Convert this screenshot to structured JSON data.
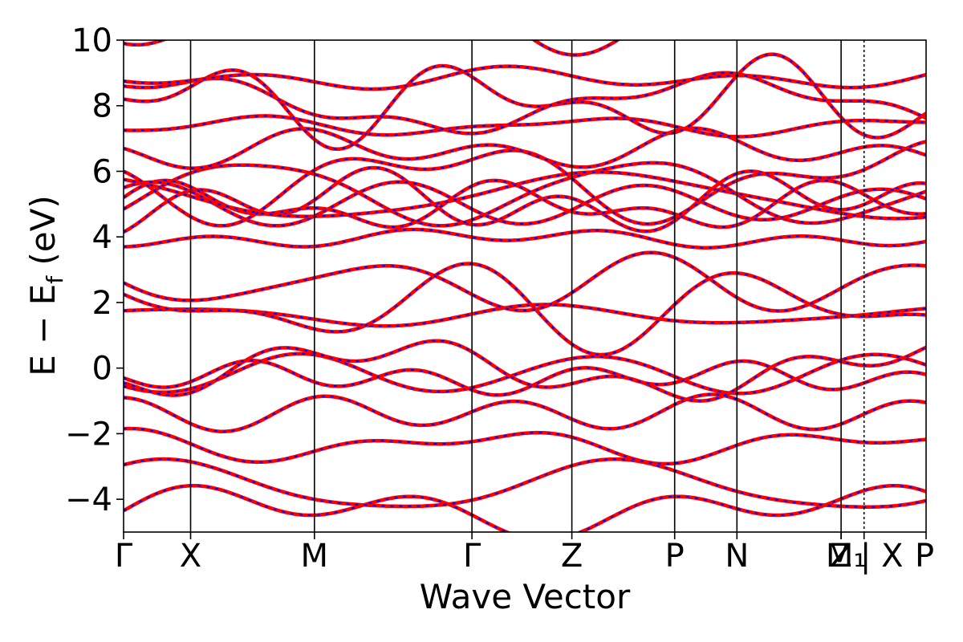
{
  "chart_data": {
    "type": "line",
    "title": "",
    "xlabel": "Wave Vector",
    "ylabel": "E − E_f (eV)",
    "ylabel_parts": {
      "main": "E − E",
      "sub": "f",
      "unit": " (eV)"
    },
    "ylim": [
      -5,
      10
    ],
    "yticks": [
      -4,
      -2,
      0,
      2,
      4,
      6,
      8,
      10
    ],
    "ytick_labels": [
      "−4",
      "−2",
      "0",
      "2",
      "4",
      "6",
      "8",
      "10"
    ],
    "xlim": [
      0,
      1
    ],
    "kpoints": [
      {
        "label": "Γ",
        "x": 0.0
      },
      {
        "label": "X",
        "x": 0.0835
      },
      {
        "label": "M",
        "x": 0.2378
      },
      {
        "label": "Γ",
        "x": 0.4341
      },
      {
        "label": "Z",
        "x": 0.5586
      },
      {
        "label": "P",
        "x": 0.6867
      },
      {
        "label": "N",
        "x": 0.7643
      },
      {
        "label": "Z",
        "x": 0.8941
      },
      {
        "label": "M₁",
        "x": 0.8941
      },
      {
        "label": "| X",
        "x": 0.9227
      },
      {
        "label": "P",
        "x": 1.0
      }
    ],
    "grid": false,
    "series_styles": [
      {
        "color": "#ff0000",
        "style": "solid"
      },
      {
        "color": "#0000ff",
        "style": "dashed"
      }
    ],
    "bands_at_gamma": [
      -4.35,
      -2.95,
      -1.85,
      -0.9,
      -0.55,
      -0.45,
      -0.3,
      1.75,
      2.25,
      2.6,
      3.7,
      4.15,
      4.85,
      5.2,
      5.5,
      5.75,
      6.0,
      6.7,
      7.25,
      8.2,
      8.6,
      8.75,
      9.9
    ]
  }
}
